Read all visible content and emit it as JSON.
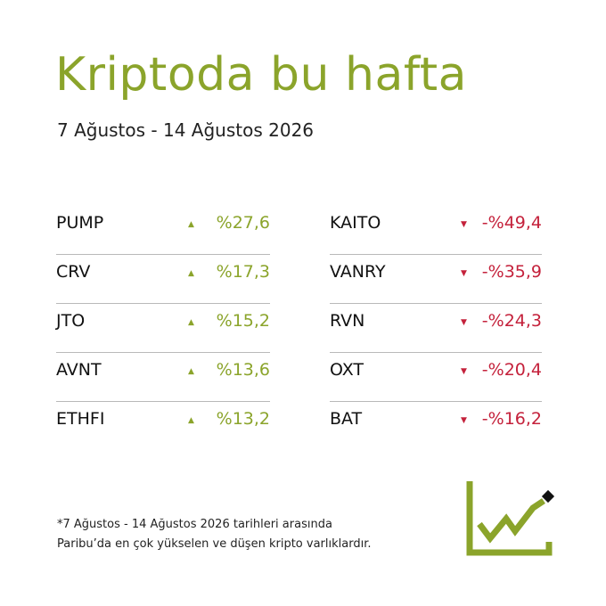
{
  "header": {
    "title": "Kriptoda bu hafta",
    "subtitle": "7 Ağustos - 14 Ağustos 2026"
  },
  "gainers": [
    {
      "name": "PUMP",
      "change": "%27,6"
    },
    {
      "name": "CRV",
      "change": "%17,3"
    },
    {
      "name": "JTO",
      "change": "%15,2"
    },
    {
      "name": "AVNT",
      "change": "%13,6"
    },
    {
      "name": "ETHFI",
      "change": "%13,2"
    }
  ],
  "losers": [
    {
      "name": "KAITO",
      "change": "-%49,4"
    },
    {
      "name": "VANRY",
      "change": "-%35,9"
    },
    {
      "name": "RVN",
      "change": "-%24,3"
    },
    {
      "name": "OXT",
      "change": "-%20,4"
    },
    {
      "name": "BAT",
      "change": "-%16,2"
    }
  ],
  "footnote": [
    "*7 Ağustos - 14 Ağustos 2026 tarihleri arasında",
    "Paribu’da en çok yükselen ve düşen kripto varlıklardır."
  ]
}
